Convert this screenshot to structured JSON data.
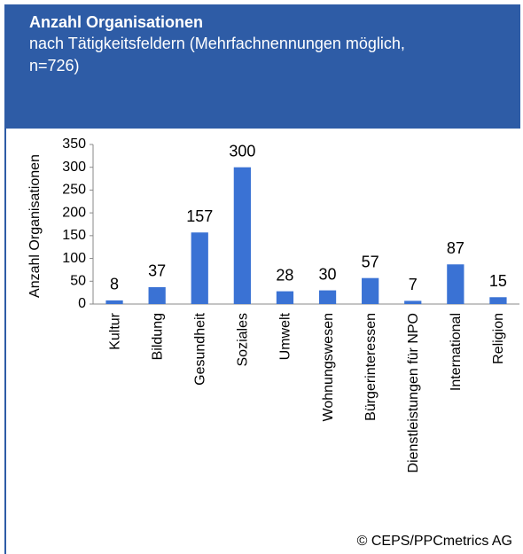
{
  "chart_data": {
    "type": "bar",
    "title": "Anzahl Organisationen",
    "subtitle": "nach Tätigkeitsfeldern (Mehrfachnennungen möglich, n=726)",
    "y_label": "Anzahl Organisationen",
    "source": "© CEPS/PPCmetrics AG",
    "categories": [
      "Kultur",
      "Bildung",
      "Gesundheit",
      "Soziales",
      "Umwelt",
      "Wohnungswesen",
      "Bürgerinteressen",
      "Dienstleistungen für NPO",
      "International",
      "Religion"
    ],
    "values": [
      8,
      37,
      157,
      300,
      28,
      30,
      57,
      7,
      87,
      15
    ],
    "color": "#3a72d4",
    "ylim": [
      0,
      350
    ],
    "yticks": [
      0,
      50,
      100,
      150,
      200,
      250,
      300,
      350
    ]
  }
}
